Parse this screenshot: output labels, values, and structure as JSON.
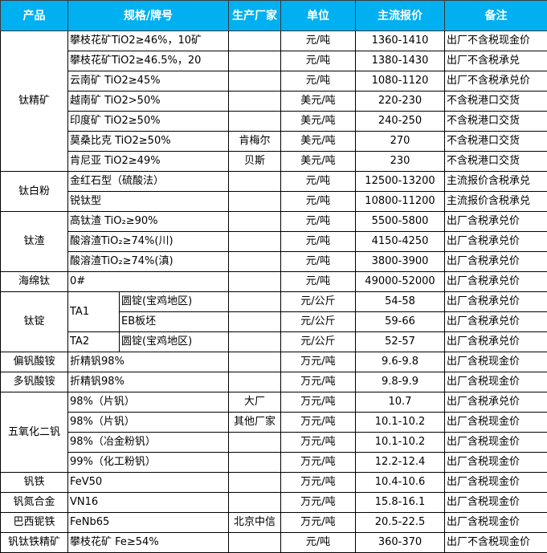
{
  "header": {
    "product": "产品",
    "spec": "规格/牌号",
    "maker": "生产厂家",
    "unit": "单位",
    "price": "主流报价",
    "note": "备注"
  },
  "accent_color": "#00b0f0",
  "groups": [
    {
      "product": "钛精矿",
      "rows": [
        {
          "spec": "攀枝花矿TiO2≥46%，10矿",
          "maker": "",
          "unit": "元/吨",
          "price": "1360-1410",
          "note": "出厂不含税现金价"
        },
        {
          "spec": "攀枝花矿TiO2≥46.5%，20",
          "maker": "",
          "unit": "元/吨",
          "price": "1380-1430",
          "note": "出厂不含税承兑"
        },
        {
          "spec": "云南矿 TiO2≥45%",
          "maker": "",
          "unit": "元/吨",
          "price": "1080-1120",
          "note": "出厂不含税承兑价"
        },
        {
          "spec": "越南矿 TiO2>50%",
          "maker": "",
          "unit": "美元/吨",
          "price": "220-230",
          "note": "不含税港口交货"
        },
        {
          "spec": "印度矿 TiO2≥50%",
          "maker": "",
          "unit": "美元/吨",
          "price": "240-250",
          "note": "不含税港口交货"
        },
        {
          "spec": "莫桑比克 TiO2≥50%",
          "maker": "肯梅尔",
          "unit": "美元/吨",
          "price": "270",
          "note": "不含税港口交货"
        },
        {
          "spec": "肯尼亚 TiO2≥49%",
          "maker": "贝斯",
          "unit": "美元/吨",
          "price": "230",
          "note": "不含税港口交货"
        }
      ]
    },
    {
      "product": "钛白粉",
      "rows": [
        {
          "spec": "金红石型（硫酸法）",
          "maker": "",
          "unit": "元/吨",
          "price": "12500-13200",
          "note": "主流报价含税承兑"
        },
        {
          "spec": "锐钛型",
          "maker": "",
          "unit": "元/吨",
          "price": "10800-11200",
          "note": "主流报价含税承兑"
        }
      ]
    },
    {
      "product": "钛渣",
      "rows": [
        {
          "spec": "高钛渣 TiO₂≥90%",
          "maker": "",
          "unit": "元/吨",
          "price": "5500-5800",
          "note": "出厂含税承兑价"
        },
        {
          "spec": "酸溶渣TiO₂≥74%(川)",
          "maker": "",
          "unit": "元/吨",
          "price": "4150-4250",
          "note": "出厂含税承兑价"
        },
        {
          "spec": "酸溶渣TiO₂≥74%(滇)",
          "maker": "",
          "unit": "元/吨",
          "price": "3800-3900",
          "note": "出厂含税承兑价"
        }
      ]
    },
    {
      "product": "海绵钛",
      "rows": [
        {
          "spec": "0#",
          "maker": "",
          "unit": "元/吨",
          "price": "49000-52000",
          "note": "出厂含税承兑价"
        }
      ]
    },
    {
      "product": "钛锭",
      "rows": [
        {
          "grade": "TA1",
          "form": "圆锭(宝鸡地区)",
          "maker": "",
          "unit": "元/公斤",
          "price": "54-58",
          "note": "出厂含税承兑价"
        },
        {
          "grade": "TA1",
          "form": "EB板坯",
          "maker": "",
          "unit": "元/公斤",
          "price": "59-66",
          "note": "出厂含税承兑价"
        },
        {
          "grade": "TA2",
          "form": "圆锭(宝鸡地区)",
          "maker": "",
          "unit": "元/公斤",
          "price": "52-57",
          "note": "出厂含税承兑价"
        }
      ]
    },
    {
      "product": "偏钒酸铵",
      "rows": [
        {
          "spec": "折精钒98%",
          "maker": "",
          "unit": "万元/吨",
          "price": "9.6-9.8",
          "note": "出厂含税现金价"
        }
      ]
    },
    {
      "product": "多钒酸铵",
      "rows": [
        {
          "spec": "折精钒98%",
          "maker": "",
          "unit": "万元/吨",
          "price": "9.8-9.9",
          "note": "出厂含税现金价"
        }
      ]
    },
    {
      "product": "五氧化二钒",
      "rows": [
        {
          "spec": "98%（片钒）",
          "maker": "大厂",
          "unit": "万元/吨",
          "price": "10.7",
          "note": "出厂含税承兑价"
        },
        {
          "spec": "98%（片钒）",
          "maker": "其他厂家",
          "unit": "万元/吨",
          "price": "10.1-10.2",
          "note": "出厂含税现金价"
        },
        {
          "spec": "98%（冶金粉钒）",
          "maker": "",
          "unit": "万元/吨",
          "price": "10.1-10.2",
          "note": "出厂含税现金价"
        },
        {
          "spec": "99%（化工粉钒）",
          "maker": "",
          "unit": "万元/吨",
          "price": "12.2-12.4",
          "note": "出厂含税现金价"
        }
      ]
    },
    {
      "product": "钒铁",
      "rows": [
        {
          "spec": "FeV50",
          "maker": "",
          "unit": "万元/吨",
          "price": "10.4-10.6",
          "note": "出厂含税现金价"
        }
      ]
    },
    {
      "product": "钒氮合金",
      "rows": [
        {
          "spec": "VN16",
          "maker": "",
          "unit": "万元/吨",
          "price": "15.8-16.1",
          "note": "出厂含税现金价"
        }
      ]
    },
    {
      "product": "巴西铌铁",
      "rows": [
        {
          "spec": "FeNb65",
          "maker": "北京中信",
          "unit": "万元/吨",
          "price": "20.5-22.5",
          "note": "出厂含税现金价"
        }
      ]
    },
    {
      "product": "钒钛铁精矿",
      "rows": [
        {
          "spec": "攀枝花矿 Fe≥54%",
          "maker": "",
          "unit": "元/吨",
          "price": "360-370",
          "note": "出厂不含税现金价"
        }
      ]
    }
  ]
}
